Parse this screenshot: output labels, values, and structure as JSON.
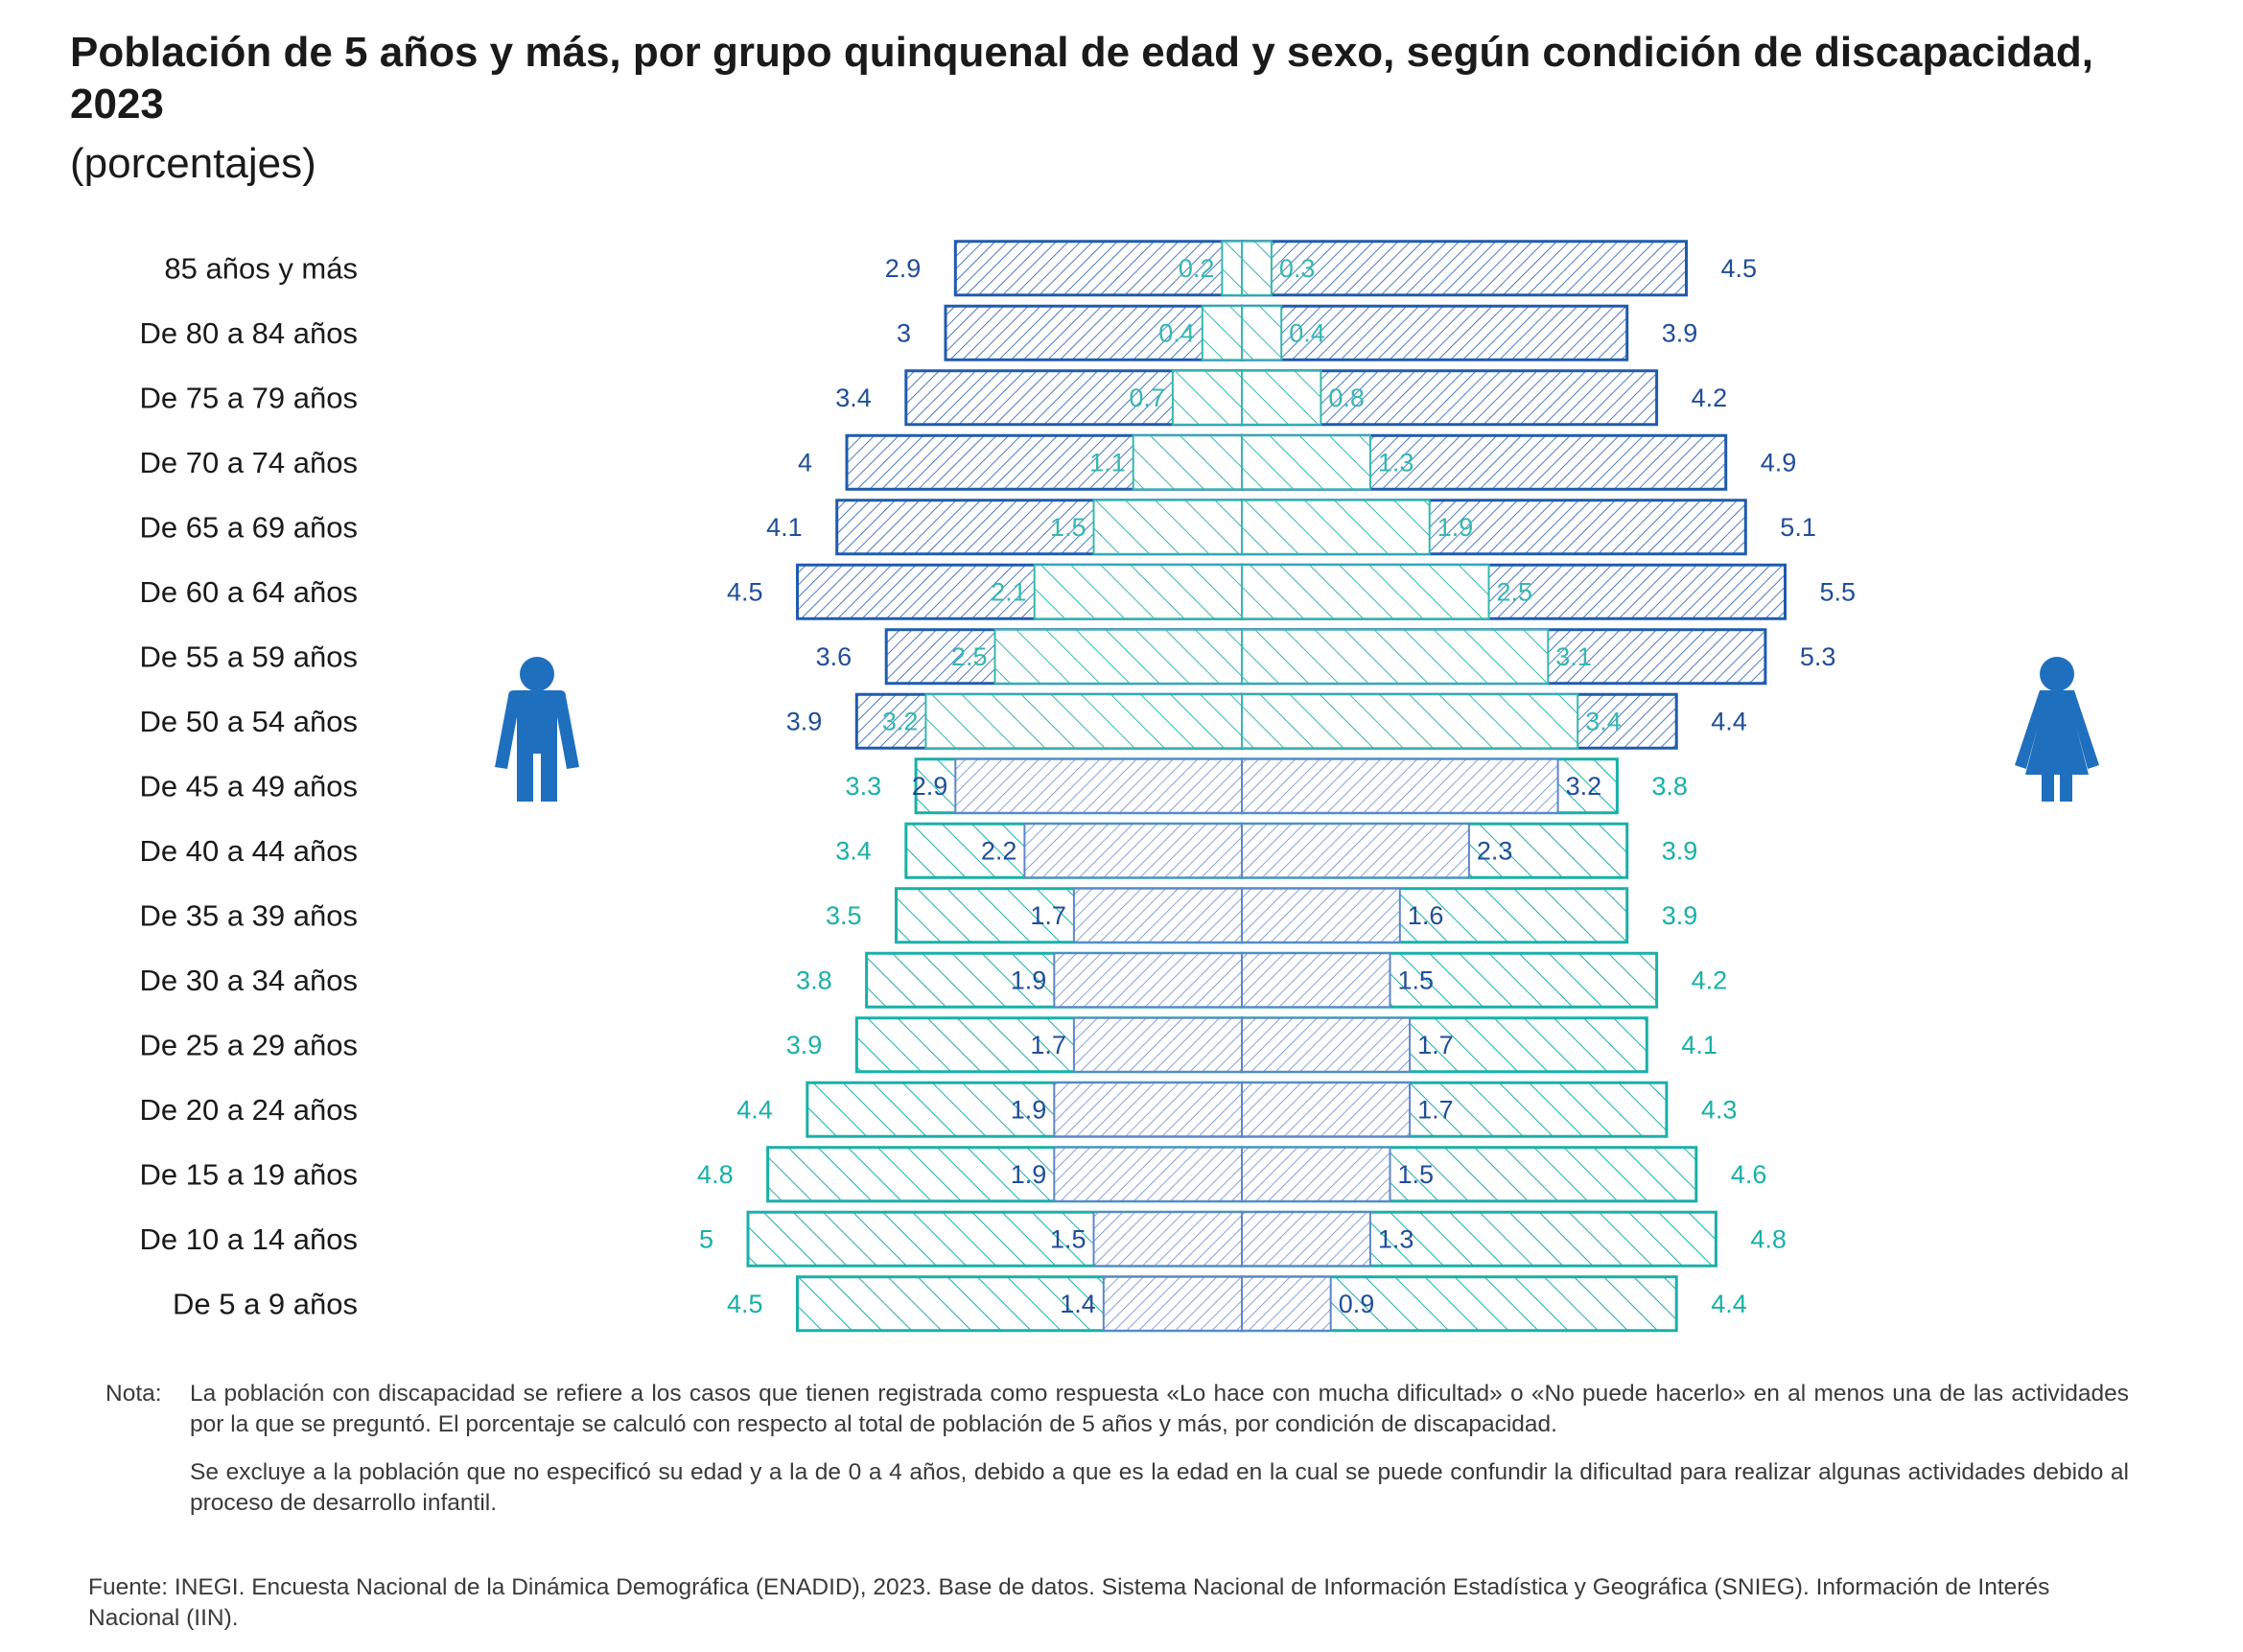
{
  "title": "Población de 5 años y más, por grupo quinquenal de edad y sexo, según condición de discapacidad, 2023",
  "subtitle": "(porcentajes)",
  "colors": {
    "sin_discapacidad_lower": "#19B0A8",
    "sin_discapacidad_upper": "#1F5BAE",
    "con_discapacidad_lower": "#5D86C9",
    "con_discapacidad_upper": "#34B8B0",
    "label_dark": "#1F4E99",
    "icon": "#1F6FBF"
  },
  "icons": {
    "left": "man-icon",
    "right": "woman-icon"
  },
  "chart_data": {
    "type": "population-pyramid",
    "categories": [
      "85 años y más",
      "De 80 a 84 años",
      "De 75 a 79 años",
      "De 70 a 74 años",
      "De 65 a 69 años",
      "De 60 a 64 años",
      "De 55 a 59 años",
      "De 50 a 54 años",
      "De 45 a 49 años",
      "De 40 a 44 años",
      "De 35 a 39 años",
      "De 30 a 34 años",
      "De 25 a 29 años",
      "De 20 a 24 años",
      "De 15 a 19 años",
      "De 10 a 14 años",
      "De 5 a 9 años"
    ],
    "series": [
      {
        "values": [
          2.9,
          3,
          3.4,
          4,
          4.1,
          4.5,
          3.6,
          3.9,
          3.3,
          3.4,
          3.5,
          3.8,
          3.9,
          4.4,
          4.8,
          5,
          4.5
        ]
      },
      {
        "values": [
          0.2,
          0.4,
          0.7,
          1.1,
          1.5,
          2.1,
          2.5,
          3.2,
          2.9,
          2.2,
          1.7,
          1.9,
          1.7,
          1.9,
          1.9,
          1.5,
          1.4
        ]
      },
      {
        "values": [
          0.3,
          0.4,
          0.8,
          1.3,
          1.9,
          2.5,
          3.1,
          3.4,
          3.2,
          2.3,
          1.6,
          1.5,
          1.7,
          1.7,
          1.5,
          1.3,
          0.9
        ]
      },
      {
        "values": [
          4.5,
          3.9,
          4.2,
          4.9,
          5.1,
          5.5,
          5.3,
          4.4,
          3.8,
          3.9,
          3.9,
          4.2,
          4.1,
          4.3,
          4.6,
          4.8,
          4.4
        ]
      }
    ],
    "upper_group_rows": 8
  },
  "notes": {
    "label": "Nota:",
    "paragraphs": [
      "La población con discapacidad se refiere a los casos que tienen registrada como respuesta «Lo hace con mucha dificultad» o «No puede hacerlo» en al menos una de las actividades por la que se preguntó. El porcentaje se calculó con respecto al total de población de 5 años y más, por condición de discapacidad.",
      "Se excluye a la población que no especificó su edad y a la de 0 a 4 años, debido a que es la edad en la cual se puede confundir la dificultad para realizar algunas actividades debido al proceso de desarrollo infantil."
    ]
  },
  "source": "Fuente: INEGI. Encuesta Nacional de la Dinámica Demográfica (ENADID), 2023. Base de datos. Sistema Nacional de Información Estadística y Geográfica (SNIEG). Información de Interés Nacional (IIN)."
}
